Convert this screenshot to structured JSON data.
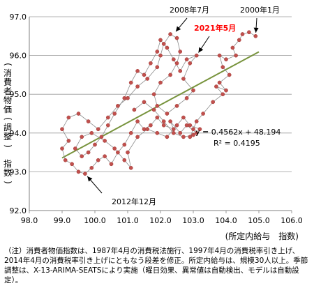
{
  "chart_data": {
    "type": "scatter",
    "x_axis": {
      "min": 98.0,
      "max": 106.0,
      "ticks": [
        "98.0",
        "99.0",
        "100.0",
        "101.0",
        "102.0",
        "103.0",
        "104.0",
        "105.0",
        "106.0"
      ]
    },
    "y_axis": {
      "min": 92.0,
      "max": 97.0,
      "ticks": [
        "92.0",
        "93.0",
        "94.0",
        "95.0",
        "96.0",
        "97.0"
      ]
    },
    "ylabel": "(消費者物価(調整)　指数)",
    "xlabel": "(所定内給与　指数)",
    "grid": "horizontal",
    "series": [
      {
        "connected": true,
        "color": "#c0504d",
        "points": [
          [
            104.9,
            96.5
          ],
          [
            104.7,
            96.6
          ],
          [
            104.5,
            96.55
          ],
          [
            104.4,
            96.4
          ],
          [
            104.2,
            96.2
          ],
          [
            104.3,
            96.0
          ],
          [
            104.0,
            95.9
          ],
          [
            103.8,
            96.0
          ],
          [
            103.9,
            95.7
          ],
          [
            104.1,
            95.5
          ],
          [
            103.8,
            95.3
          ],
          [
            104.0,
            95.1
          ],
          [
            103.7,
            95.2
          ],
          [
            103.9,
            95.0
          ],
          [
            103.6,
            94.8
          ],
          [
            103.3,
            94.5
          ],
          [
            103.1,
            94.3
          ],
          [
            103.0,
            94.1
          ],
          [
            102.9,
            93.9
          ],
          [
            103.1,
            94.0
          ],
          [
            102.8,
            94.2
          ],
          [
            102.6,
            94.0
          ],
          [
            102.3,
            94.3
          ],
          [
            102.4,
            94.1
          ],
          [
            102.1,
            94.2
          ],
          [
            101.9,
            94.4
          ],
          [
            101.7,
            94.2
          ],
          [
            101.5,
            94.1
          ],
          [
            101.3,
            94.3
          ],
          [
            101.1,
            94.0
          ],
          [
            100.9,
            93.7
          ],
          [
            100.7,
            93.5
          ],
          [
            100.5,
            93.2
          ],
          [
            100.3,
            93.4
          ],
          [
            100.1,
            93.3
          ],
          [
            99.9,
            93.1
          ],
          [
            99.7,
            92.95
          ],
          [
            99.5,
            93.0
          ],
          [
            99.3,
            93.2
          ],
          [
            99.1,
            93.3
          ],
          [
            99.0,
            93.6
          ],
          [
            99.2,
            93.8
          ],
          [
            99.0,
            94.1
          ],
          [
            99.2,
            94.4
          ],
          [
            99.5,
            94.5
          ],
          [
            99.8,
            94.3
          ],
          [
            100.1,
            94.1
          ],
          [
            100.4,
            94.4
          ],
          [
            100.7,
            94.7
          ],
          [
            101.0,
            94.9
          ],
          [
            101.3,
            95.2
          ],
          [
            101.6,
            95.4
          ],
          [
            101.9,
            95.7
          ],
          [
            102.0,
            96.0
          ],
          [
            102.1,
            96.3
          ],
          [
            102.3,
            96.55
          ],
          [
            102.5,
            96.45
          ],
          [
            102.6,
            96.1
          ],
          [
            102.5,
            95.8
          ],
          [
            102.3,
            95.5
          ],
          [
            102.0,
            95.3
          ],
          [
            101.8,
            95.0
          ],
          [
            101.9,
            94.7
          ],
          [
            102.2,
            94.5
          ],
          [
            102.5,
            94.7
          ],
          [
            102.8,
            94.9
          ],
          [
            103.0,
            95.1
          ],
          [
            102.7,
            95.4
          ],
          [
            102.9,
            95.8
          ],
          [
            103.1,
            96.0
          ],
          [
            102.8,
            95.9
          ],
          [
            102.6,
            95.6
          ],
          [
            102.4,
            95.9
          ],
          [
            102.2,
            96.2
          ],
          [
            102.0,
            96.4
          ],
          [
            101.9,
            96.1
          ],
          [
            101.7,
            95.8
          ],
          [
            101.5,
            95.5
          ],
          [
            101.3,
            95.6
          ],
          [
            101.1,
            95.3
          ],
          [
            100.9,
            94.9
          ],
          [
            100.6,
            94.5
          ],
          [
            100.4,
            94.2
          ],
          [
            100.2,
            93.9
          ],
          [
            100.0,
            93.7
          ],
          [
            99.8,
            93.5
          ],
          [
            99.6,
            93.4
          ],
          [
            99.4,
            93.6
          ],
          [
            99.6,
            93.9
          ],
          [
            99.9,
            94.0
          ],
          [
            100.3,
            93.8
          ],
          [
            100.6,
            93.6
          ],
          [
            100.9,
            93.3
          ],
          [
            101.1,
            93.1
          ],
          [
            101.0,
            93.5
          ],
          [
            101.3,
            93.9
          ],
          [
            101.6,
            94.1
          ],
          [
            101.9,
            94.0
          ],
          [
            102.2,
            93.9
          ],
          [
            102.5,
            94.2
          ],
          [
            102.7,
            94.4
          ],
          [
            102.9,
            94.2
          ],
          [
            103.2,
            94.1
          ],
          [
            103.0,
            93.95
          ],
          [
            102.7,
            93.9
          ],
          [
            102.4,
            94.0
          ],
          [
            102.1,
            94.3
          ],
          [
            101.8,
            94.6
          ],
          [
            101.5,
            94.8
          ],
          [
            101.2,
            94.6
          ]
        ]
      }
    ],
    "trendline": {
      "type": "linear",
      "slope": 0.4562,
      "intercept": 48.194,
      "x_range": [
        99.0,
        105.0
      ],
      "color": "#77933c",
      "equation": "y = 0.4562x + 48.194",
      "r2": "R² = 0.4195"
    },
    "annotations": [
      {
        "text": "2008年7月",
        "target": [
          102.4,
          96.55
        ],
        "red": false
      },
      {
        "text": "2000年1月",
        "target": [
          104.9,
          96.5
        ],
        "red": false
      },
      {
        "text": "2021年5月",
        "target": [
          103.1,
          96.0
        ],
        "red": true
      },
      {
        "text": "2012年12月",
        "target": [
          99.7,
          92.95
        ],
        "red": false
      }
    ]
  },
  "note": "（注）消費者物価指数は、1987年4月の消費税法施行、1997年4月の消費税率引き上げ、2014年4月の消費税率引き上げにともなう段差を修正。所定内給与は、規模30人以上。季節調整は、X-13-ARIMA-SEATSにより実施（曜日効果、異常値は自動検出、モデルは自動設定）。"
}
